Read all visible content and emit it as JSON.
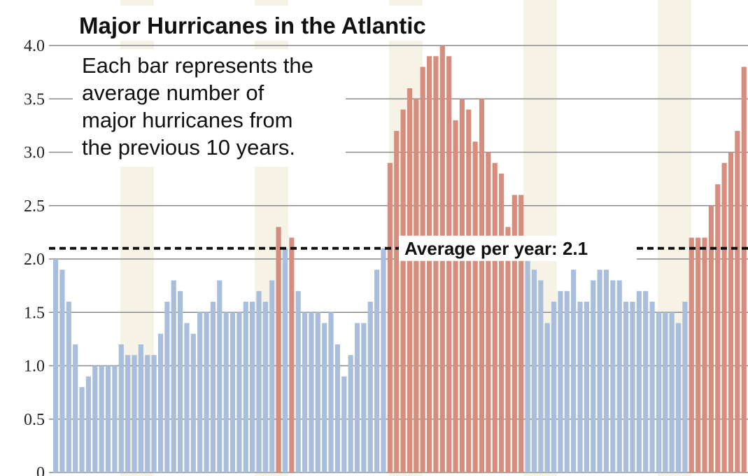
{
  "colors": {
    "background": "#ffffff",
    "band": "#f7f2e6",
    "grid": "#8a8a8a",
    "below_average": "#a9bedd",
    "above_average": "#d68d7e",
    "text": "#111111"
  },
  "chart_data": {
    "type": "bar",
    "title": "Major Hurricanes in the Atlantic",
    "subtitle": [
      "Each bar represents the",
      "average number of",
      "major hurricanes from",
      "the previous 10 years."
    ],
    "xlabel": "",
    "ylabel": "",
    "ylim": [
      0,
      4.0
    ],
    "yticks": [
      {
        "value": 0,
        "label": "0"
      },
      {
        "value": 0.5,
        "label": "0.5"
      },
      {
        "value": 1.0,
        "label": "1.0"
      },
      {
        "value": 1.5,
        "label": "1.5"
      },
      {
        "value": 2.0,
        "label": "2.0"
      },
      {
        "value": 2.5,
        "label": "2.5"
      },
      {
        "value": 3.0,
        "label": "3.0"
      },
      {
        "value": 3.5,
        "label": "3.5"
      },
      {
        "value": 4.0,
        "label": "4.0"
      }
    ],
    "grid": true,
    "reference_line": {
      "value": 2.1,
      "label": "Average per year: 2.1"
    },
    "values": [
      2.0,
      1.9,
      1.6,
      1.2,
      0.8,
      0.9,
      1.0,
      1.0,
      1.0,
      1.0,
      1.2,
      1.1,
      1.1,
      1.2,
      1.1,
      1.1,
      1.3,
      1.6,
      1.8,
      1.7,
      1.4,
      1.3,
      1.5,
      1.5,
      1.6,
      1.8,
      1.5,
      1.5,
      1.5,
      1.6,
      1.6,
      1.7,
      1.6,
      1.8,
      2.3,
      2.1,
      2.2,
      1.7,
      1.5,
      1.5,
      1.5,
      1.4,
      1.5,
      1.2,
      0.9,
      1.1,
      1.4,
      1.4,
      1.6,
      1.9,
      2.1,
      2.9,
      3.2,
      3.4,
      3.6,
      3.5,
      3.8,
      3.9,
      3.9,
      4.0,
      3.9,
      3.3,
      3.5,
      3.4,
      3.1,
      3.5,
      3.0,
      2.9,
      2.8,
      2.3,
      2.6,
      2.6,
      2.0,
      1.9,
      1.8,
      1.4,
      1.6,
      1.7,
      1.7,
      1.9,
      1.6,
      1.6,
      1.8,
      1.9,
      1.9,
      1.8,
      1.8,
      1.6,
      1.6,
      1.7,
      1.7,
      1.6,
      1.5,
      1.5,
      1.5,
      1.4,
      1.6,
      2.2,
      2.2,
      2.2,
      2.5,
      2.7,
      2.9,
      3.0,
      3.2,
      3.8
    ]
  }
}
